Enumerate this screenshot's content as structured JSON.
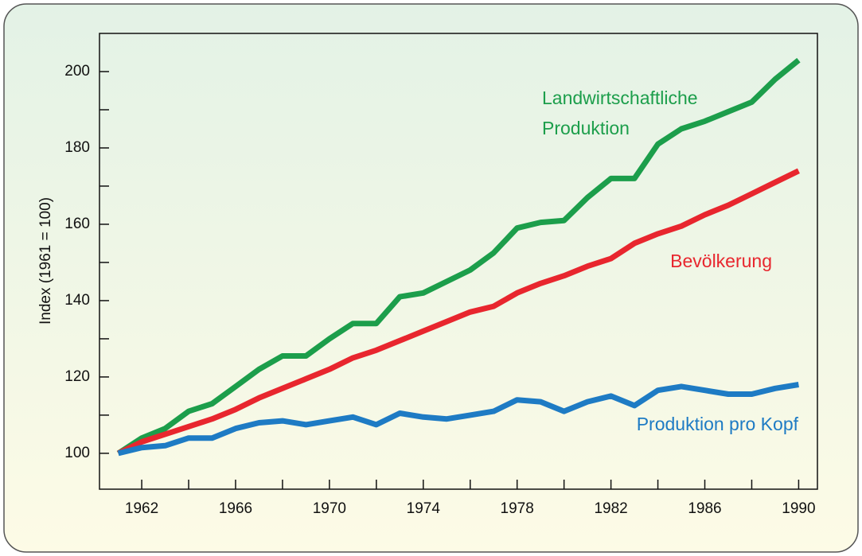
{
  "chart_data": {
    "type": "line",
    "y_label": "Index (1961 = 100)",
    "x": [
      1961,
      1962,
      1963,
      1964,
      1965,
      1966,
      1967,
      1968,
      1969,
      1970,
      1971,
      1972,
      1973,
      1974,
      1975,
      1976,
      1977,
      1978,
      1979,
      1980,
      1981,
      1982,
      1983,
      1984,
      1985,
      1986,
      1987,
      1988,
      1989,
      1990
    ],
    "series": [
      {
        "name": "Landwirtschaftliche Produktion",
        "color": "#1c9e4b",
        "values": [
          100,
          104,
          106.5,
          111,
          113,
          117.5,
          122,
          125.5,
          125.5,
          130,
          134,
          134,
          141,
          142,
          145,
          148,
          152.5,
          159,
          160.5,
          161,
          167,
          172,
          172,
          181,
          185,
          187,
          189.5,
          192,
          198,
          203
        ]
      },
      {
        "name": "Bevölkerung",
        "color": "#e8262e",
        "values": [
          100,
          103,
          105,
          107,
          109,
          111.5,
          114.5,
          117,
          119.5,
          122,
          125,
          127,
          129.5,
          132,
          134.5,
          137,
          138.5,
          142,
          144.5,
          146.5,
          149,
          151,
          155,
          157.5,
          159.5,
          162.5,
          165,
          168,
          171,
          174
        ]
      },
      {
        "name": "Produktion pro Kopf",
        "color": "#1e7bc4",
        "values": [
          100,
          101.5,
          102,
          104,
          104,
          106.5,
          108,
          108.5,
          107.5,
          108.5,
          109.5,
          107.5,
          110.5,
          109.5,
          109,
          110,
          111,
          114,
          113.5,
          111,
          113.5,
          115,
          112.5,
          116.5,
          117.5,
          116.5,
          115.5,
          115.5,
          117,
          118
        ]
      }
    ],
    "xlim": [
      1960.2,
      1990.8
    ],
    "xticks": [
      1962,
      1966,
      1970,
      1974,
      1978,
      1982,
      1986,
      1990
    ],
    "xminorticks": [
      1964,
      1968,
      1972,
      1976,
      1980,
      1984,
      1988
    ],
    "ylim": [
      90.6,
      210
    ],
    "yticks": [
      100,
      120,
      140,
      160,
      180,
      200
    ],
    "yminorticks": [
      110,
      130,
      150,
      170,
      190
    ]
  }
}
